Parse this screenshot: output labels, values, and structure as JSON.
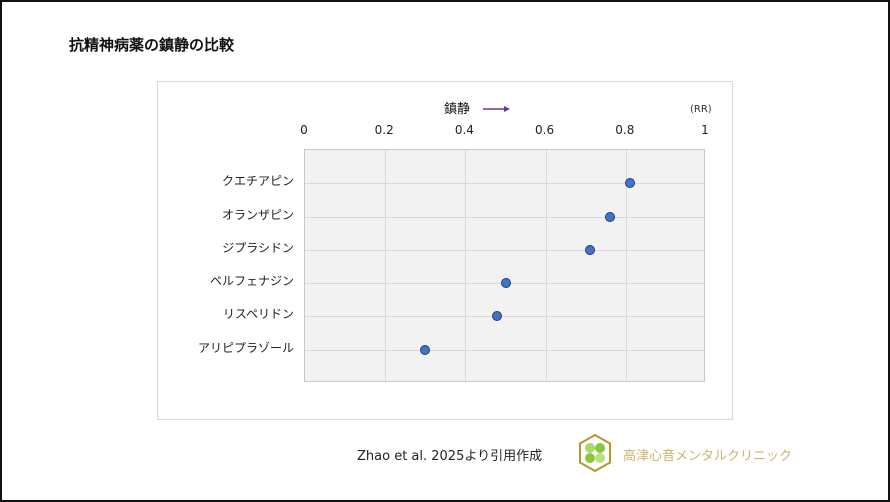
{
  "slide": {
    "title": "抗精神病薬の鎮静の比較",
    "source": "Zhao et al. 2025より引用作成",
    "clinic_name": "高津心音メンタルクリニック"
  },
  "colors": {
    "dot_fill": "#4472C4",
    "dot_border": "#1F3F78",
    "arrow": "#7030A0",
    "plot_bg": "#F2F2F2",
    "grid": "#D9D9D9",
    "clinic_text": "#C9B46A",
    "logo_hex": "#B8962E",
    "logo_leaf": "#8CC63F"
  },
  "chart_data": {
    "type": "scatter",
    "title": "",
    "xlabel": "鎮静",
    "xlabel_arrow": "right",
    "unit_label": "(RR)",
    "xlim": [
      0,
      1
    ],
    "x_ticks": [
      "0",
      "0.2",
      "0.4",
      "0.6",
      "0.8",
      "1"
    ],
    "x_axis_position": "top",
    "grid": true,
    "legend": null,
    "categories": [
      "クエチアピン",
      "オランザピン",
      "ジプラシドン",
      "ペルフェナジン",
      "リスペリドン",
      "アリピプラゾール"
    ],
    "values": [
      0.81,
      0.76,
      0.71,
      0.5,
      0.48,
      0.3
    ]
  }
}
